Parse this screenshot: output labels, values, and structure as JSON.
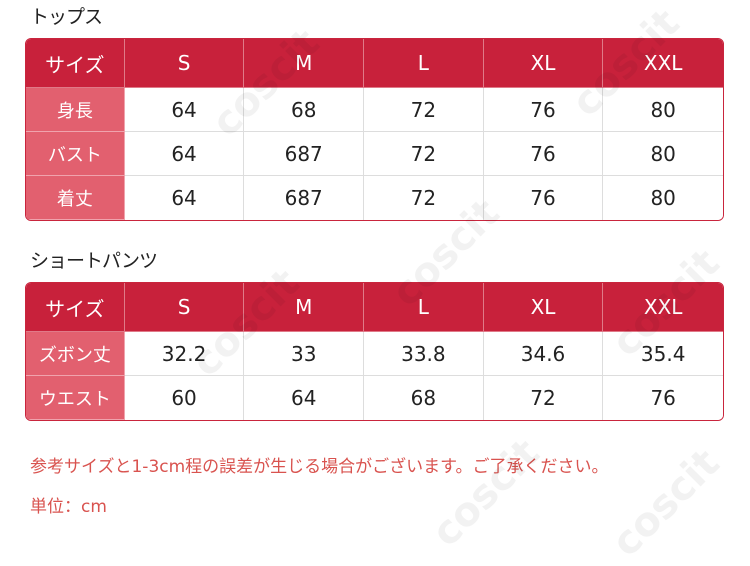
{
  "watermark": "coscit",
  "tables": [
    {
      "title": "トップス",
      "header": [
        "サイズ",
        "S",
        "M",
        "L",
        "XL",
        "XXL"
      ],
      "rows": [
        [
          "身長",
          "64",
          "68",
          "72",
          "76",
          "80"
        ],
        [
          "バスト",
          "64",
          "687",
          "72",
          "76",
          "80"
        ],
        [
          "着丈",
          "64",
          "687",
          "72",
          "76",
          "80"
        ]
      ]
    },
    {
      "title": "ショートパンツ",
      "header": [
        "サイズ",
        "S",
        "M",
        "L",
        "XL",
        "XXL"
      ],
      "rows": [
        [
          "ズボン丈",
          "32.2",
          "33",
          "33.8",
          "34.6",
          "35.4"
        ],
        [
          "ウエスト",
          "60",
          "64",
          "68",
          "72",
          "76"
        ]
      ]
    }
  ],
  "notes": [
    "参考サイズと1-3cm程の誤差が生じる場合がございます。ご了承ください。",
    "単位：cm"
  ]
}
